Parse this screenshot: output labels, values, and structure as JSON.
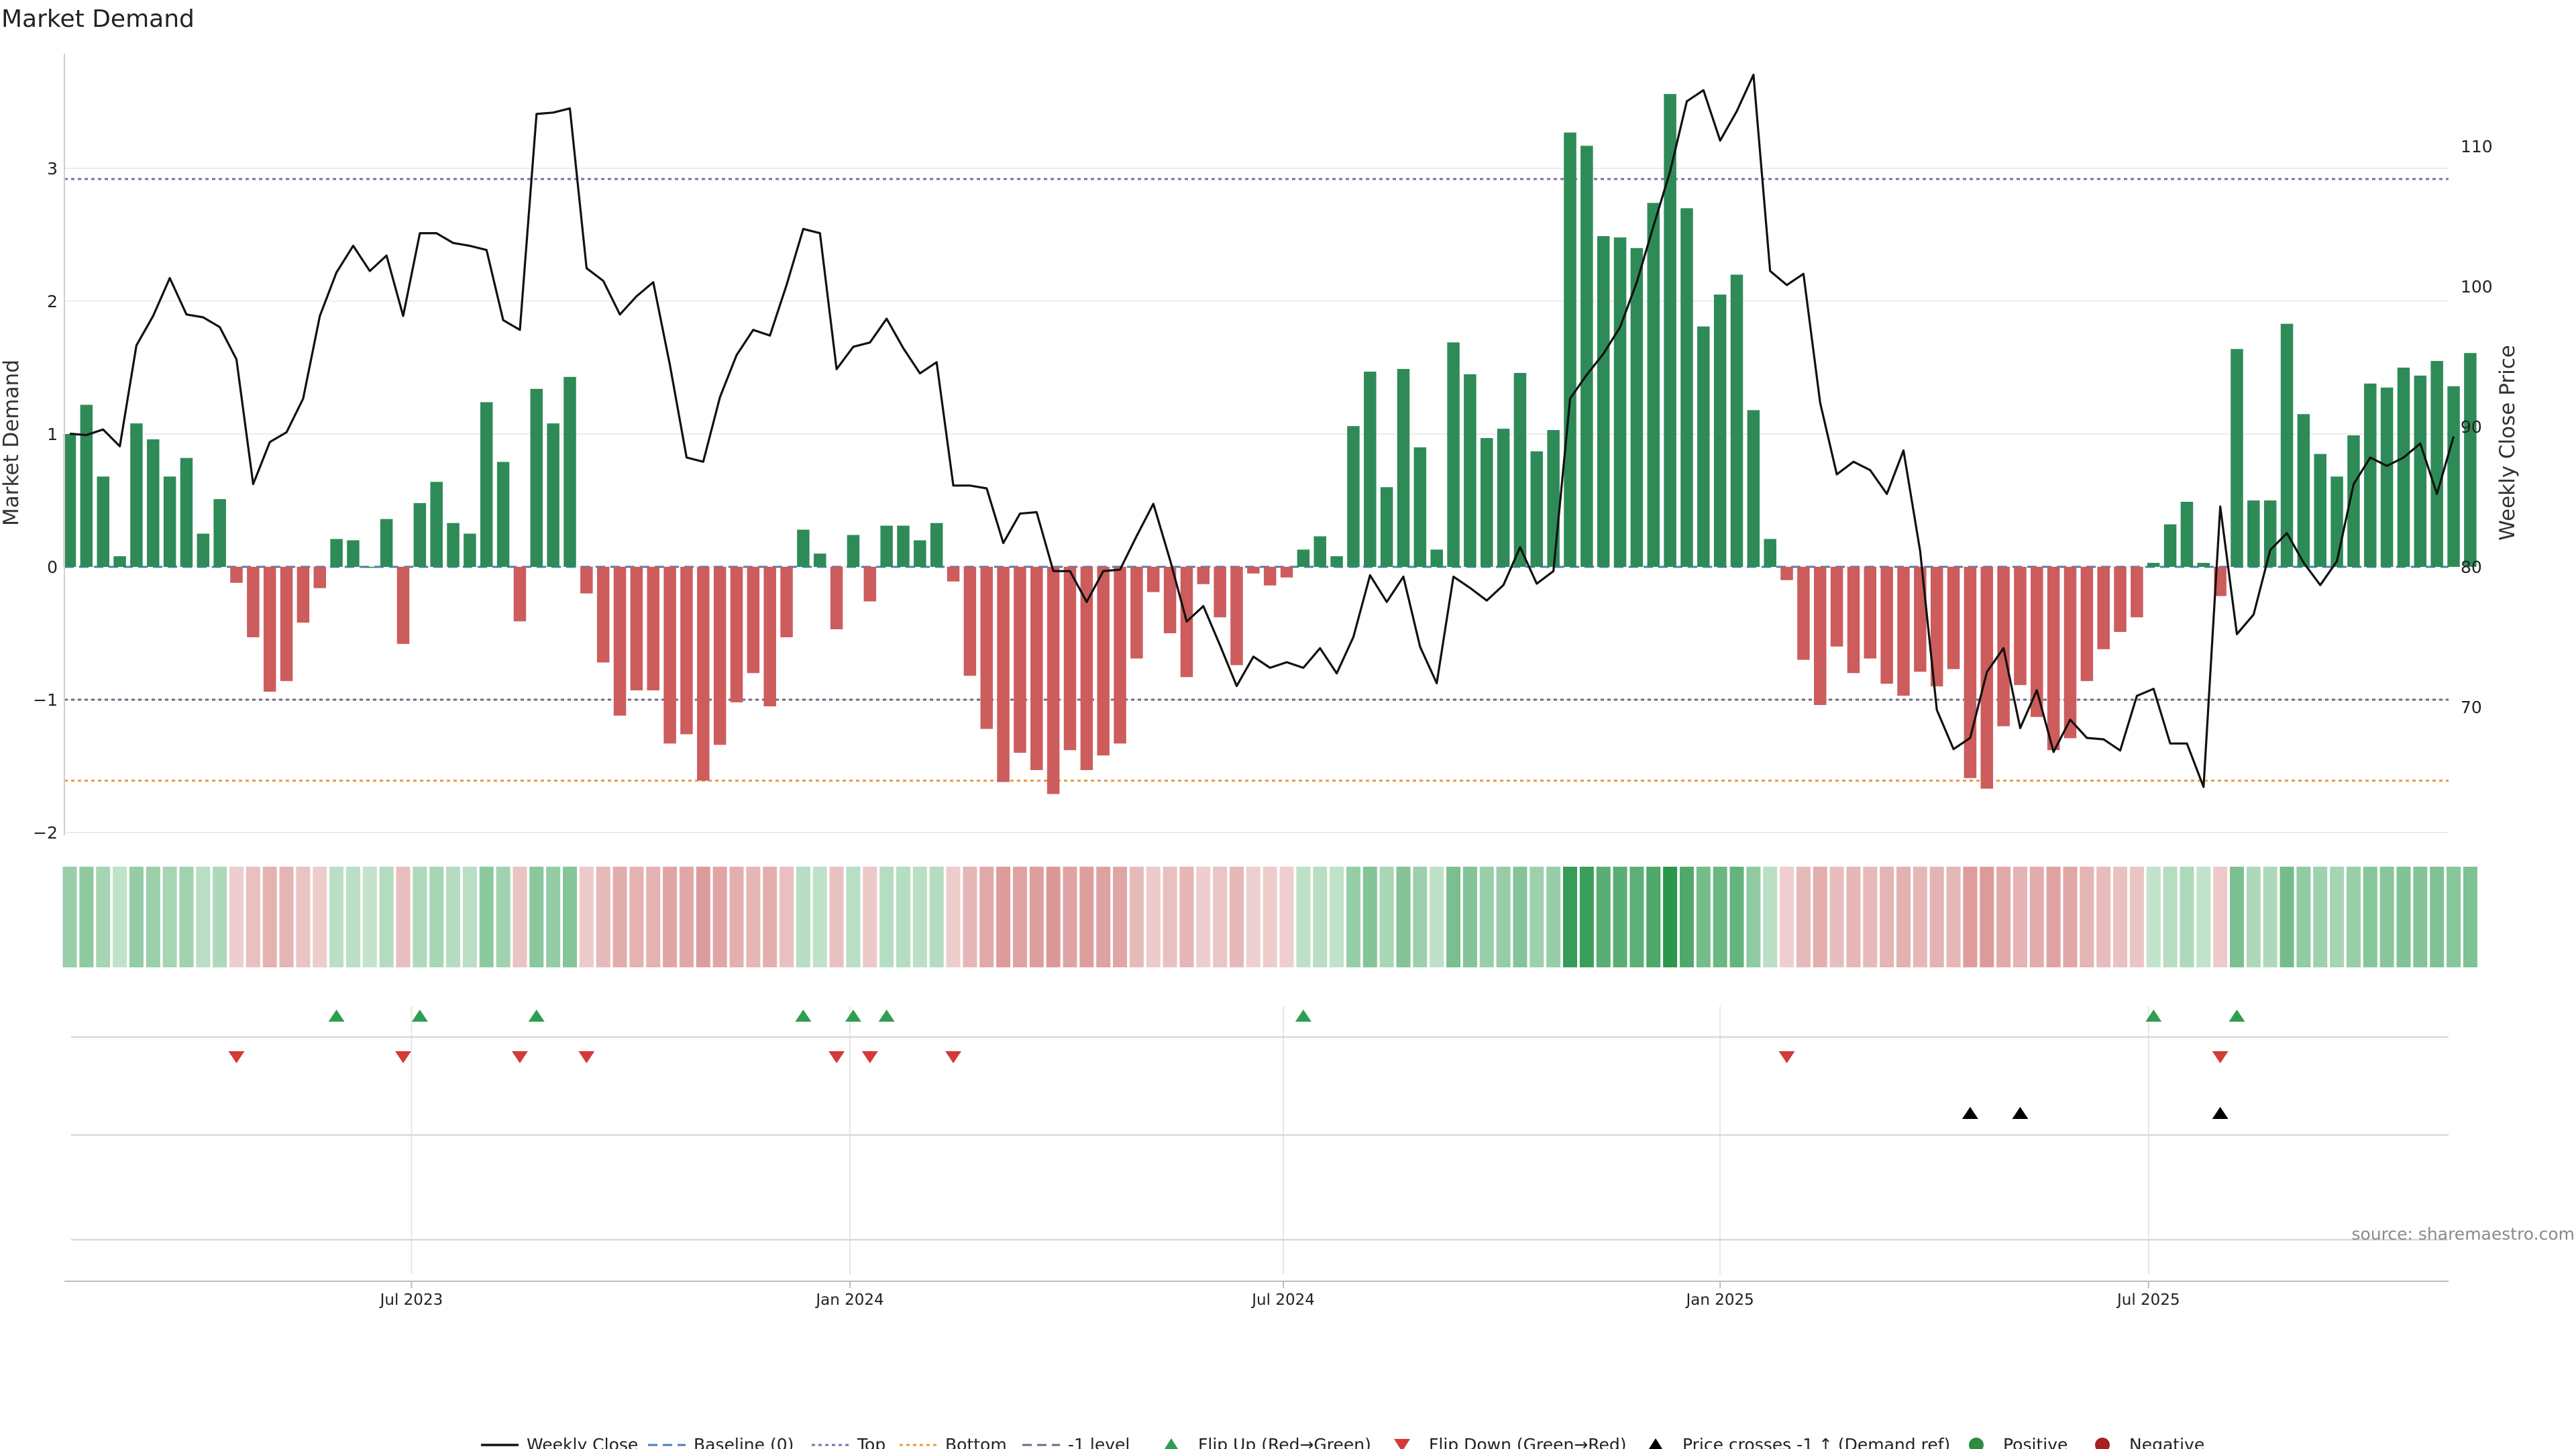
{
  "chart_data": {
    "type": "bar+line",
    "title": "Market Demand",
    "ylabel_left": "Market Demand",
    "ylabel_right": "Weekly Close Price",
    "source": "source: sharemaestro.com",
    "y_left_range": [
      -2.0,
      3.7
    ],
    "y_left_ticks": [
      "−2",
      "−1",
      "0",
      "1",
      "2",
      "3"
    ],
    "y_left_tick_values": [
      -2,
      -1,
      0,
      1,
      2,
      3
    ],
    "y_right_range": [
      60,
      116
    ],
    "y_right_ticks": [
      "70",
      "80",
      "90",
      "100",
      "110"
    ],
    "y_right_tick_values": [
      70,
      80,
      90,
      100,
      110
    ],
    "x_tick_labels": [
      "Jul 2023",
      "Jan 2024",
      "Jul 2024",
      "Jan 2025",
      "Jul 2025"
    ],
    "x_tick_weeks": [
      20.5,
      46.8,
      72.8,
      99.0,
      124.7
    ],
    "reference_lines": [
      {
        "name": "Top",
        "value": 2.92,
        "color": "#7b6fb0"
      },
      {
        "name": "-1 level",
        "value": -1.0,
        "color": "#6e6a86"
      },
      {
        "name": "Bottom",
        "value": -1.61,
        "color": "#e89a3c"
      },
      {
        "name": "Baseline (0)",
        "value": 0,
        "color": "#4a7fb5"
      }
    ],
    "demand": [
      1.0,
      1.22,
      0.68,
      0.08,
      1.08,
      0.96,
      0.68,
      0.82,
      0.25,
      0.51,
      -0.12,
      -0.53,
      -0.94,
      -0.86,
      -0.42,
      -0.16,
      0.21,
      0.2,
      0.0,
      0.36,
      -0.58,
      0.48,
      0.64,
      0.33,
      0.25,
      1.24,
      0.79,
      -0.41,
      1.34,
      1.08,
      1.43,
      -0.2,
      -0.72,
      -1.12,
      -0.93,
      -0.93,
      -1.33,
      -1.26,
      -1.61,
      -1.34,
      -1.02,
      -0.8,
      -1.05,
      -0.53,
      0.28,
      0.1,
      -0.47,
      0.24,
      -0.26,
      0.31,
      0.31,
      0.2,
      0.33,
      -0.11,
      -0.82,
      -1.22,
      -1.62,
      -1.4,
      -1.53,
      -1.71,
      -1.38,
      -1.53,
      -1.42,
      -1.33,
      -0.69,
      -0.19,
      -0.5,
      -0.83,
      -0.13,
      -0.38,
      -0.74,
      -0.05,
      -0.14,
      -0.08,
      0.13,
      0.23,
      0.08,
      1.06,
      1.47,
      0.6,
      1.49,
      0.9,
      0.13,
      1.69,
      1.45,
      0.97,
      1.04,
      1.46,
      0.87,
      1.03,
      3.27,
      3.17,
      2.49,
      2.48,
      2.4,
      2.74,
      3.56,
      2.7,
      1.81,
      2.05,
      2.2,
      1.18,
      0.21,
      -0.1,
      -0.7,
      -1.04,
      -0.6,
      -0.8,
      -0.69,
      -0.88,
      -0.97,
      -0.79,
      -0.9,
      -0.77,
      -1.59,
      -1.67,
      -1.2,
      -0.89,
      -1.13,
      -1.38,
      -1.29,
      -0.86,
      -0.62,
      -0.49,
      -0.38,
      0.03,
      0.32,
      0.49,
      0.03,
      -0.22,
      1.64,
      0.5,
      0.5,
      1.83,
      1.15,
      0.85,
      0.68,
      0.99,
      1.38,
      1.35,
      1.5,
      1.44,
      1.55,
      1.36,
      1.61
    ],
    "close": [
      89.5,
      89.4,
      89.8,
      88.6,
      95.8,
      97.9,
      100.6,
      98.0,
      97.8,
      97.1,
      94.8,
      85.9,
      88.9,
      89.6,
      92.0,
      97.9,
      101.0,
      102.9,
      101.1,
      102.2,
      97.9,
      103.8,
      103.8,
      103.1,
      102.9,
      102.6,
      97.6,
      96.9,
      112.3,
      112.4,
      112.7,
      101.3,
      100.4,
      98.0,
      99.3,
      100.3,
      94.4,
      87.8,
      87.5,
      92.1,
      95.1,
      96.9,
      96.5,
      100.1,
      104.1,
      103.8,
      94.1,
      95.7,
      96.0,
      97.7,
      95.6,
      93.8,
      94.6,
      85.8,
      85.8,
      85.6,
      81.7,
      83.8,
      83.9,
      79.7,
      79.7,
      77.5,
      79.7,
      79.8,
      82.2,
      84.5,
      80.5,
      76.1,
      77.2,
      74.4,
      71.5,
      73.6,
      72.8,
      73.2,
      72.8,
      74.2,
      72.4,
      75.0,
      79.4,
      77.5,
      79.3,
      74.3,
      71.7,
      79.3,
      78.5,
      77.6,
      78.7,
      81.4,
      78.8,
      79.7,
      92.0,
      93.7,
      95.2,
      97.1,
      100.3,
      104.3,
      108.2,
      113.2,
      114.0,
      110.4,
      112.5,
      115.1,
      101.1,
      100.1,
      100.9,
      91.7,
      86.6,
      87.5,
      86.9,
      85.2,
      88.3,
      81.1,
      69.8,
      67.0,
      67.8,
      72.5,
      74.2,
      68.5,
      71.2,
      66.8,
      69.1,
      67.8,
      67.7,
      66.9,
      70.8,
      71.3,
      67.4,
      67.4,
      64.3,
      84.3,
      75.2,
      76.6,
      81.2,
      82.4,
      80.3,
      78.7,
      80.4,
      85.9,
      87.8,
      87.2,
      87.8,
      88.8,
      85.2,
      89.3
    ]
  },
  "legend": [
    {
      "label": "Weekly Close",
      "kind": "line",
      "color": "#111111"
    },
    {
      "label": "Baseline (0)",
      "kind": "dash",
      "color": "#4a7fb5"
    },
    {
      "label": "Top",
      "kind": "dot",
      "color": "#7b6fb0"
    },
    {
      "label": "Bottom",
      "kind": "dot",
      "color": "#e89a3c"
    },
    {
      "label": "-1 level",
      "kind": "dash",
      "color": "#6e6a86"
    },
    {
      "label": "Flip Up (Red→Green)",
      "kind": "tri-up",
      "color": "#2e9e4f"
    },
    {
      "label": "Flip Down (Green→Red)",
      "kind": "tri-down",
      "color": "#d33a3a"
    },
    {
      "label": "Price crosses -1 ↑ (Demand ref)",
      "kind": "tri-up",
      "color": "#000000"
    },
    {
      "label": "Positive",
      "kind": "circle",
      "color": "#2e8b3f"
    },
    {
      "label": "Negative",
      "kind": "circle",
      "color": "#a82020"
    }
  ],
  "colors": {
    "positive_bar": "#2e8b57",
    "negative_bar": "#cd5c5c",
    "price_line": "#111111",
    "flip_up": "#2e9e4f",
    "flip_down": "#d33a3a",
    "price_cross": "#000000"
  }
}
